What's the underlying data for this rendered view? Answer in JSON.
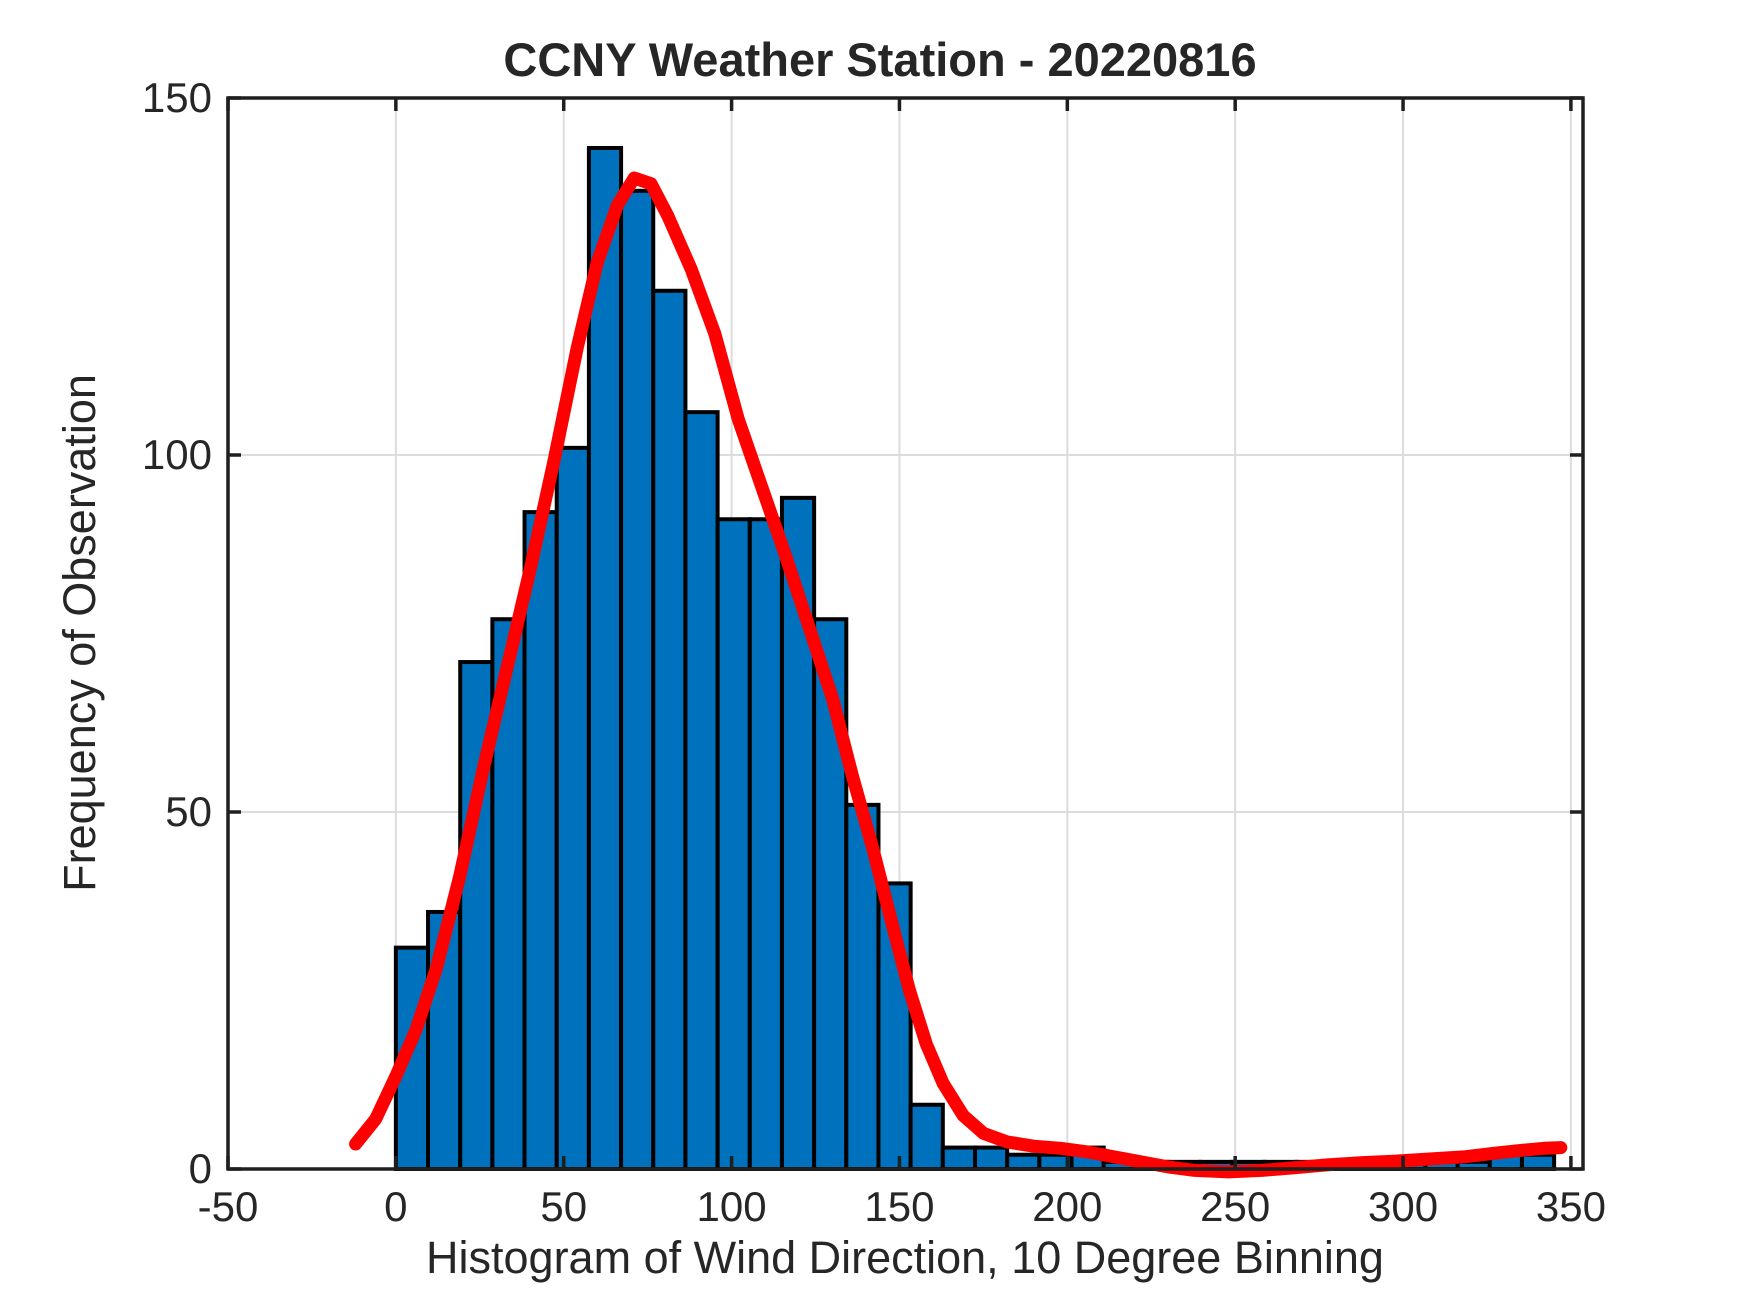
{
  "chart_data": {
    "type": "bar",
    "subtype": "histogram-with-fit-line",
    "title": "CCNY Weather Station - 20220816",
    "xlabel": "Histogram of Wind Direction, 10 Degree Binning",
    "ylabel": "Frequency of Observation",
    "xlim": [
      -50,
      353.6
    ],
    "ylim": [
      0,
      150
    ],
    "xticks": [
      -50,
      0,
      50,
      100,
      150,
      200,
      250,
      300,
      350
    ],
    "yticks": [
      0,
      50,
      100,
      150
    ],
    "grid": true,
    "legend": "none",
    "bins": {
      "start": 0,
      "end": 345,
      "count": 36
    },
    "frequencies": [
      31,
      36,
      71,
      77,
      92,
      101,
      143,
      137,
      123,
      106,
      91,
      91,
      94,
      77,
      51,
      40,
      9,
      3,
      3,
      2,
      2,
      3,
      1,
      1,
      1,
      1,
      1,
      1,
      1,
      1,
      1,
      1,
      1,
      1,
      2,
      2
    ],
    "fit_curve": {
      "name": "kernel-density-fit",
      "points": [
        [
          -12,
          3.5
        ],
        [
          -6,
          7
        ],
        [
          0,
          13
        ],
        [
          6,
          19.5
        ],
        [
          12,
          28
        ],
        [
          19,
          41
        ],
        [
          26,
          56
        ],
        [
          33,
          70
        ],
        [
          40,
          84
        ],
        [
          47,
          99
        ],
        [
          54,
          115
        ],
        [
          60,
          127
        ],
        [
          66,
          135
        ],
        [
          71,
          138.8
        ],
        [
          76,
          138
        ],
        [
          81,
          133.5
        ],
        [
          88,
          126
        ],
        [
          95,
          117
        ],
        [
          102,
          105
        ],
        [
          109,
          95.5
        ],
        [
          116,
          86
        ],
        [
          123,
          76
        ],
        [
          130,
          66
        ],
        [
          136,
          55
        ],
        [
          142,
          45
        ],
        [
          148,
          34
        ],
        [
          153,
          25
        ],
        [
          158,
          17.5
        ],
        [
          163,
          12
        ],
        [
          169,
          7.5
        ],
        [
          175,
          5
        ],
        [
          182,
          3.8
        ],
        [
          190,
          3.2
        ],
        [
          198,
          2.9
        ],
        [
          206,
          2.4
        ],
        [
          214,
          1.7
        ],
        [
          222,
          1.0
        ],
        [
          230,
          0.3
        ],
        [
          238,
          -0.2
        ],
        [
          248,
          -0.4
        ],
        [
          258,
          -0.2
        ],
        [
          268,
          0.2
        ],
        [
          278,
          0.6
        ],
        [
          288,
          0.9
        ],
        [
          298,
          1.1
        ],
        [
          308,
          1.4
        ],
        [
          318,
          1.7
        ],
        [
          327,
          2.2
        ],
        [
          335,
          2.6
        ],
        [
          342,
          2.9
        ],
        [
          347,
          3.0
        ]
      ]
    },
    "colors": {
      "bar_fill": "#0072bd",
      "bar_edge": "#000000",
      "curve": "#ff0000",
      "grid": "#dcdcdc",
      "axis": "#1f1f1f",
      "text": "#262626",
      "background": "#ffffff"
    }
  }
}
